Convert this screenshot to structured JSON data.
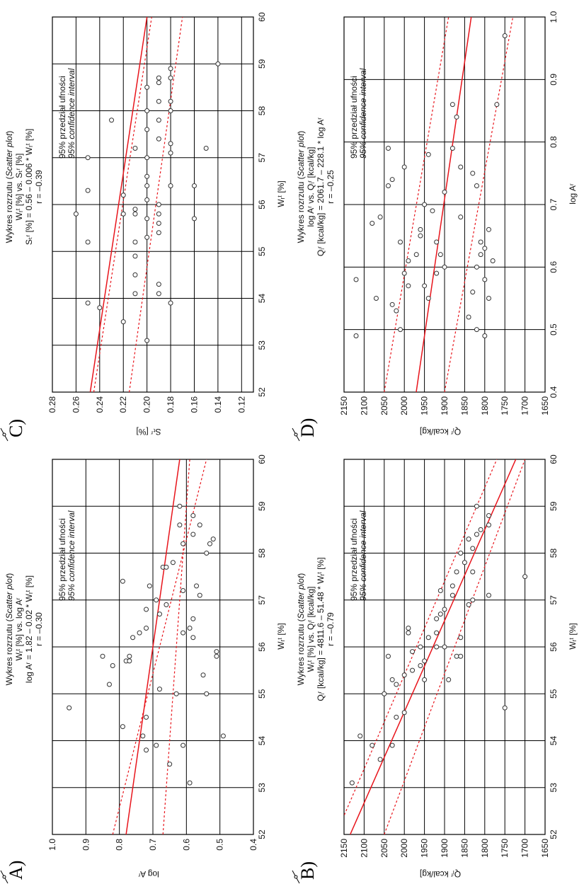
{
  "panels": [
    {
      "letter": "A)",
      "title_line1_pl": "Wykres rozrzutu (",
      "title_line1_en": "Scatter plot",
      "title_line1_end": ")",
      "title_line2": "Wᵣᵗ [%] vs. log Aʳ",
      "title_line3": "log Aʳ = 1.82 – 0.02 * Wᵣᵗ [%]",
      "title_line4": "r = –0.30",
      "ylabel": "log Aʳ",
      "xlabel": "Wᵣᵗ [%]",
      "legend_pl": "95% przedział ufności",
      "legend_en": "95% confidence interval"
    },
    {
      "letter": "B)",
      "title_line1_pl": "Wykres rozrzutu (",
      "title_line1_en": "Scatter plot",
      "title_line1_end": ")",
      "title_line2": "Wᵣᵗ [%] vs. Qᵢʳ [kcal/kg]",
      "title_line3": "Qᵢʳ [kcal/kg] = 4811.6 – 51.48 * Wᵣᵗ [%]",
      "title_line4": "r = –0.79",
      "ylabel": "Qᵢʳ kcal/kg]",
      "xlabel": "Wᵣᵗ [%]",
      "legend_pl": "95% przedział ufności",
      "legend_en": "95% confidence interval"
    },
    {
      "letter": "C)",
      "title_line1_pl": "Wykres rozrzutu (",
      "title_line1_en": "Scatter plot",
      "title_line1_end": ")",
      "title_line2": "Wᵣᵗ [%] vs. Sₜʳ [%]",
      "title_line3": "Sₜʳ [%] = 0.56 – 0.006 * Wᵣᵗ [%]",
      "title_line4": "r = –0.39",
      "ylabel": "Sₜʳ [%]",
      "xlabel": "Wᵣᵗ [%]",
      "legend_pl": "95% przedział ufności",
      "legend_en": "95% confidence interval"
    },
    {
      "letter": "D)",
      "title_line1_pl": "Wykres rozrzutu (",
      "title_line1_en": "Scatter plot",
      "title_line1_end": ")",
      "title_line2": "log Aʳ vs. Qᵢʳ [kcal/kg]",
      "title_line3": "Qᵢʳ [kcal/kg] = 2061.7 – 228.1 * log Aʳ",
      "title_line4": "r = –0.25",
      "ylabel": "Qᵢʳ kcal/kg]",
      "xlabel": "log Aʳ",
      "legend_pl": "95% przedział ufności",
      "legend_en": "95% confidence interval"
    }
  ],
  "colors": {
    "fit_line": "#e8141b",
    "grid": "#000000",
    "points": "#333333"
  },
  "chart_data": [
    {
      "type": "scatter",
      "title": "Wykres rozrzutu (Scatter plot) Wᵣᵗ [%] vs. log Aʳ",
      "xlabel": "Wᵣᵗ [%]",
      "ylabel": "log Aʳ",
      "xlim": [
        52,
        60
      ],
      "ylim": [
        0.4,
        1.0
      ],
      "xticks": [
        "52",
        "53",
        "54",
        "55",
        "56",
        "57",
        "58",
        "59",
        "60"
      ],
      "yticks": [
        "0.4",
        "0.5",
        "0.6",
        "0.7",
        "0.8",
        "0.9",
        "1.0"
      ],
      "regression": {
        "intercept": 1.82,
        "slope": -0.02,
        "r": -0.3
      },
      "confidence_interval": {
        "at_xmin": [
          0.82,
          0.67
        ],
        "at_xmax": [
          0.54,
          0.59
        ]
      },
      "x": [
        54.7,
        55.2,
        55.6,
        55.8,
        55.7,
        54.3,
        56.2,
        56.4,
        55.8,
        55.1,
        54.1,
        55.7,
        56.3,
        56.8,
        57.4,
        54.5,
        53.8,
        53.9,
        56.7,
        57.0,
        55.0,
        53.5,
        53.9,
        53.1,
        55.8,
        55.9,
        55.4,
        55.0,
        54.1,
        56.3,
        56.2,
        56.4,
        56.6,
        57.2,
        57.3,
        57.8,
        57.7,
        58.2,
        58.4,
        58.6,
        58.8,
        58.6,
        58.0,
        58.2,
        58.3,
        59.0,
        57.1,
        56.9,
        57.3,
        57.7
      ],
      "y": [
        0.95,
        0.83,
        0.82,
        0.85,
        0.78,
        0.79,
        0.76,
        0.72,
        0.77,
        0.68,
        0.73,
        0.77,
        0.74,
        0.72,
        0.79,
        0.72,
        0.72,
        0.69,
        0.68,
        0.69,
        0.63,
        0.65,
        0.61,
        0.59,
        0.51,
        0.51,
        0.55,
        0.54,
        0.49,
        0.61,
        0.58,
        0.59,
        0.58,
        0.61,
        0.57,
        0.64,
        0.67,
        0.61,
        0.58,
        0.62,
        0.58,
        0.56,
        0.54,
        0.53,
        0.52,
        0.62,
        0.56,
        0.66,
        0.71,
        0.66
      ]
    },
    {
      "type": "scatter",
      "title": "Wykres rozrzutu (Scatter plot) Wᵣᵗ [%] vs. Qᵢʳ [kcal/kg]",
      "xlabel": "Wᵣᵗ [%]",
      "ylabel": "Qᵢʳ kcal/kg]",
      "xlim": [
        52,
        60
      ],
      "ylim": [
        1650,
        2150
      ],
      "xticks": [
        "52",
        "53",
        "54",
        "55",
        "56",
        "57",
        "58",
        "59",
        "60"
      ],
      "yticks": [
        "1650",
        "1700",
        "1750",
        "1800",
        "1850",
        "1900",
        "1950",
        "2000",
        "2050",
        "2100",
        "2150"
      ],
      "regression": {
        "intercept": 4811.6,
        "slope": -51.48,
        "r": -0.79
      },
      "confidence_interval": {
        "at_xmin": [
          2170,
          2050
        ],
        "at_xmax": [
          1770,
          1700
        ]
      },
      "x": [
        53.1,
        53.6,
        53.9,
        54.1,
        53.9,
        54.5,
        54.6,
        55.0,
        55.2,
        55.3,
        55.4,
        55.8,
        55.5,
        56.0,
        56.3,
        56.4,
        55.3,
        55.6,
        55.7,
        55.9,
        56.0,
        56.2,
        56.3,
        56.6,
        56.7,
        56.8,
        57.2,
        57.1,
        57.3,
        57.6,
        57.8,
        57.6,
        58.0,
        58.1,
        58.3,
        58.4,
        58.5,
        58.6,
        58.8,
        59.0,
        56.0,
        55.3,
        55.8,
        56.2,
        56.9,
        57.0,
        57.5,
        54.7,
        55.8,
        57.1
      ],
      "y": [
        2130,
        2060,
        2080,
        2110,
        2030,
        2020,
        2000,
        2050,
        2020,
        2030,
        2000,
        2040,
        1980,
        1960,
        1990,
        1990,
        1950,
        1960,
        1950,
        1980,
        1920,
        1940,
        1920,
        1920,
        1910,
        1900,
        1910,
        1880,
        1880,
        1870,
        1850,
        1830,
        1860,
        1830,
        1840,
        1820,
        1810,
        1790,
        1790,
        1820,
        1900,
        1890,
        1870,
        1860,
        1840,
        1830,
        1700,
        1750,
        1860,
        1790
      ]
    },
    {
      "type": "scatter",
      "title": "Wykres rozrzutu (Scatter plot) Wᵣᵗ [%] vs. Sₜʳ [%]",
      "xlabel": "Wᵣᵗ [%]",
      "ylabel": "Sₜʳ [%]",
      "xlim": [
        52,
        60
      ],
      "ylim": [
        0.11,
        0.28
      ],
      "xticks": [
        "52",
        "53",
        "54",
        "55",
        "56",
        "57",
        "58",
        "59",
        "60"
      ],
      "yticks": [
        "0.12",
        "0.14",
        "0.16",
        "0.18",
        "0.20",
        "0.22",
        "0.24",
        "0.26",
        "0.28"
      ],
      "regression": {
        "intercept": 0.56,
        "slope": -0.006,
        "r": -0.39
      },
      "confidence_interval": {
        "at_xmin": [
          0.245,
          0.215
        ],
        "at_xmax": [
          0.196,
          0.17
        ]
      },
      "x": [
        53.8,
        53.9,
        55.2,
        55.8,
        56.3,
        57.0,
        57.8,
        56.2,
        55.8,
        55.8,
        55.2,
        54.5,
        53.5,
        53.1,
        54.1,
        54.9,
        55.3,
        55.7,
        55.9,
        56.1,
        56.4,
        56.6,
        57.0,
        57.2,
        57.4,
        57.6,
        57.8,
        58.0,
        58.2,
        58.5,
        58.6,
        58.7,
        58.9,
        54.1,
        54.3,
        55.4,
        55.6,
        55.8,
        56.0,
        56.4,
        57.1,
        57.3,
        58.0,
        58.2,
        58.7,
        59.0,
        56.4,
        57.2,
        55.7,
        53.9
      ],
      "y": [
        0.24,
        0.25,
        0.25,
        0.26,
        0.25,
        0.25,
        0.23,
        0.22,
        0.22,
        0.21,
        0.21,
        0.21,
        0.22,
        0.2,
        0.21,
        0.21,
        0.2,
        0.2,
        0.21,
        0.2,
        0.2,
        0.2,
        0.2,
        0.21,
        0.19,
        0.2,
        0.19,
        0.2,
        0.19,
        0.2,
        0.19,
        0.19,
        0.18,
        0.19,
        0.19,
        0.19,
        0.19,
        0.19,
        0.19,
        0.18,
        0.18,
        0.18,
        0.18,
        0.18,
        0.18,
        0.14,
        0.16,
        0.15,
        0.16,
        0.18
      ]
    },
    {
      "type": "scatter",
      "title": "Wykres rozrzutu (Scatter plot) log Aʳ vs. Qᵢʳ [kcal/kg]",
      "xlabel": "log Aʳ",
      "ylabel": "Qᵢʳ kcal/kg]",
      "xlim": [
        0.4,
        1.0
      ],
      "ylim": [
        1650,
        2150
      ],
      "xticks": [
        "0.4",
        "0.5",
        "0.6",
        "0.7",
        "0.8",
        "0.9",
        "1.0"
      ],
      "yticks": [
        "1650",
        "1700",
        "1750",
        "1800",
        "1850",
        "1900",
        "1950",
        "2000",
        "2050",
        "2100",
        "2150"
      ],
      "regression": {
        "intercept": 2061.7,
        "slope": -228.1,
        "r": -0.25
      },
      "confidence_interval": {
        "at_xmin": [
          2050,
          1900
        ],
        "at_xmax": [
          1890,
          1730
        ]
      },
      "x": [
        0.49,
        0.58,
        0.55,
        0.54,
        0.5,
        0.53,
        0.57,
        0.59,
        0.61,
        0.62,
        0.64,
        0.65,
        0.67,
        0.68,
        0.66,
        0.7,
        0.73,
        0.74,
        0.76,
        0.79,
        0.78,
        0.69,
        0.64,
        0.59,
        0.62,
        0.55,
        0.57,
        0.6,
        0.72,
        0.76,
        0.79,
        0.84,
        0.86,
        0.52,
        0.5,
        0.56,
        0.6,
        0.62,
        0.63,
        0.64,
        0.66,
        0.73,
        0.75,
        0.55,
        0.58,
        0.61,
        0.68,
        0.49,
        0.86,
        0.97
      ],
      "y": [
        2120,
        2120,
        2070,
        2030,
        2010,
        2020,
        1990,
        2000,
        1990,
        1970,
        2010,
        1960,
        2080,
        2060,
        1960,
        1950,
        2040,
        2030,
        2000,
        2040,
        1940,
        1930,
        1920,
        1920,
        1910,
        1940,
        1950,
        1900,
        1900,
        1860,
        1880,
        1870,
        1880,
        1840,
        1820,
        1830,
        1820,
        1810,
        1800,
        1810,
        1790,
        1820,
        1830,
        1790,
        1800,
        1780,
        1860,
        1800,
        1770,
        1750
      ]
    }
  ]
}
